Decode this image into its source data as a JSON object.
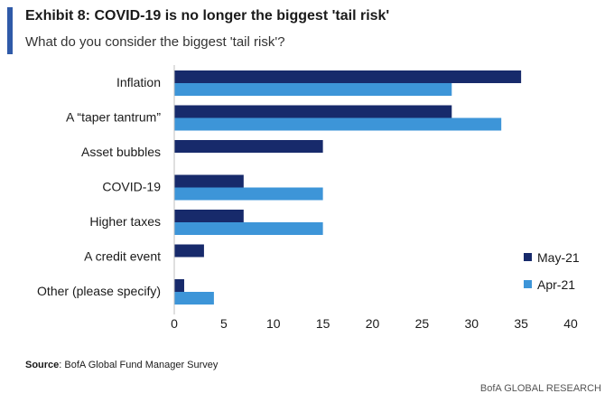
{
  "header": {
    "title": "Exhibit 8: COVID-19 is no longer the biggest 'tail risk'",
    "subtitle": "What do you consider the biggest 'tail risk'?"
  },
  "source": {
    "label": "Source",
    "text": ": BofA Global Fund Manager Survey"
  },
  "footer": {
    "brand": "BofA GLOBAL RESEARCH"
  },
  "colors": {
    "may": "#172a6b",
    "apr": "#3d95d8",
    "accent": "#2f5aa8"
  },
  "chart_data": {
    "type": "bar",
    "orientation": "horizontal",
    "categories": [
      "Inflation",
      "A “taper tantrum”",
      "Asset bubbles",
      "COVID-19",
      "Higher taxes",
      "A credit event",
      "Other (please specify)"
    ],
    "series": [
      {
        "name": "May-21",
        "values": [
          35,
          28,
          15,
          7,
          7,
          3,
          1
        ],
        "color": "#172a6b"
      },
      {
        "name": "Apr-21",
        "values": [
          28,
          33,
          0,
          15,
          15,
          0,
          4
        ],
        "color": "#3d95d8"
      }
    ],
    "xlim": [
      0,
      40
    ],
    "xticks": [
      0,
      5,
      10,
      15,
      20,
      25,
      30,
      35,
      40
    ],
    "grid": false,
    "legend_position": "bottom-right"
  }
}
